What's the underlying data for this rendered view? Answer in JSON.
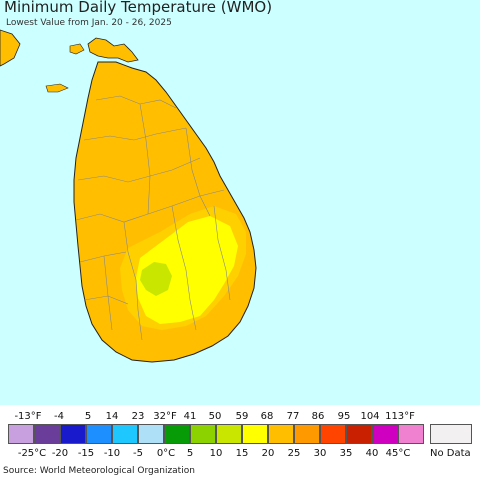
{
  "title": "Minimum Daily Temperature (WMO)",
  "subtitle": "Lowest Value from Jan. 20 - 26, 2025",
  "colors": {
    "sea": "#ccffff",
    "land_orange": "#ffbf00",
    "land_light_orange": "#ffd000",
    "land_yellow": "#ffff00",
    "land_yellow_green": "#c8e600",
    "border": "#888888",
    "coast": "#222222"
  },
  "legend": {
    "fahrenheit_ticks": [
      "-13°F",
      "-4",
      "5",
      "14",
      "23",
      "32°F",
      "41",
      "50",
      "59",
      "68",
      "77",
      "86",
      "95",
      "104",
      "113°F"
    ],
    "celsius_ticks": [
      "-25°C",
      "-20",
      "-15",
      "-10",
      "-5",
      "0°C",
      "5",
      "10",
      "15",
      "20",
      "25",
      "30",
      "35",
      "40",
      "45°C"
    ],
    "swatches": [
      "#c8a0e0",
      "#6a3d9a",
      "#1a1acd",
      "#1e8fff",
      "#1ec8ff",
      "#aee0f8",
      "#079b07",
      "#8cd200",
      "#c8e600",
      "#ffff00",
      "#ffbf00",
      "#ff9900",
      "#ff4400",
      "#c82000",
      "#d000c0",
      "#f080d0"
    ],
    "no_data_label": "No Data",
    "no_data_color": "#f2f0f0"
  },
  "source": "Source: World Meteorological Organization"
}
